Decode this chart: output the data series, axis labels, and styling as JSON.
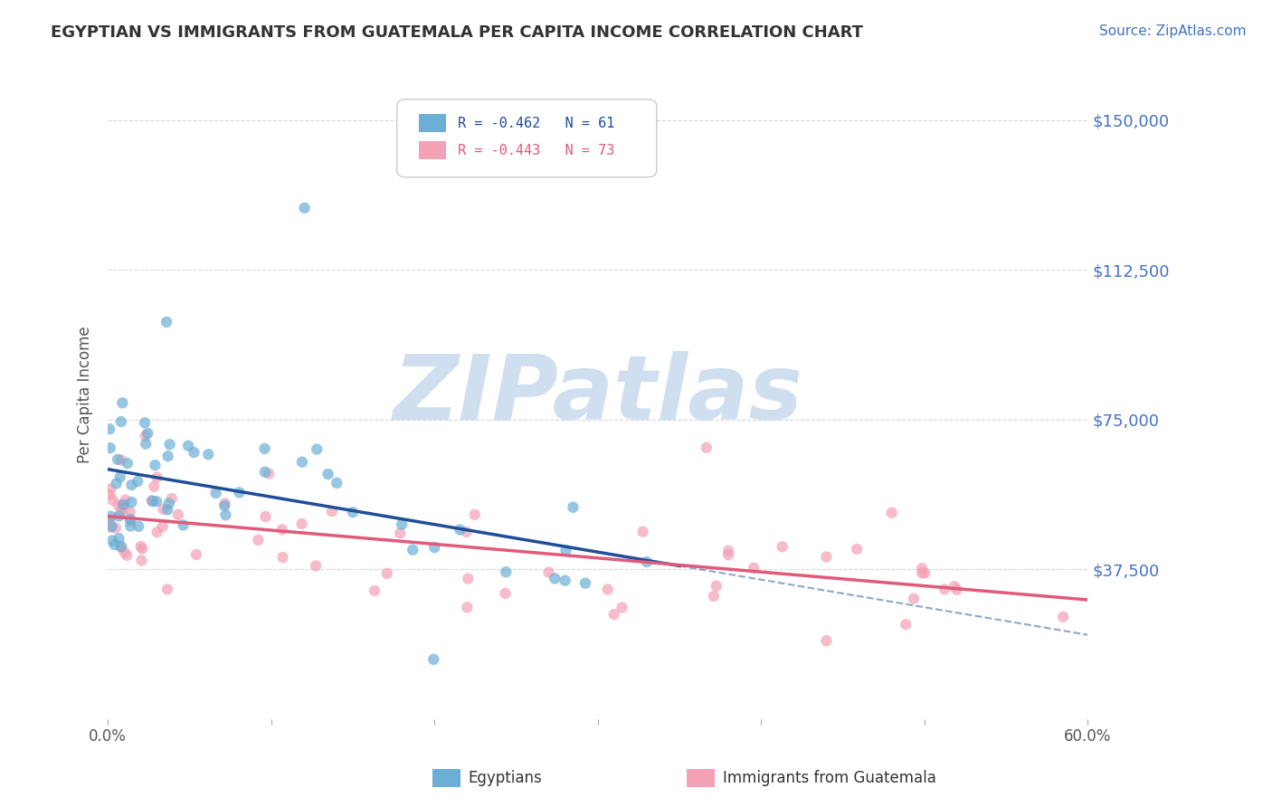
{
  "title": "EGYPTIAN VS IMMIGRANTS FROM GUATEMALA PER CAPITA INCOME CORRELATION CHART",
  "source_text": "Source: ZipAtlas.com",
  "ylabel": "Per Capita Income",
  "xlim": [
    0.0,
    0.6
  ],
  "ylim": [
    0,
    162500
  ],
  "yticks": [
    0,
    37500,
    75000,
    112500,
    150000
  ],
  "ytick_labels": [
    "",
    "$37,500",
    "$75,000",
    "$112,500",
    "$150,000"
  ],
  "xtick_vals": [
    0.0,
    0.1,
    0.2,
    0.3,
    0.4,
    0.5,
    0.6
  ],
  "xtick_labels": [
    "0.0%",
    "",
    "",
    "",
    "",
    "",
    "60.0%"
  ],
  "legend_items": [
    {
      "label": "R = -0.462   N = 61",
      "color": "#6baed6"
    },
    {
      "label": "R = -0.443   N = 73",
      "color": "#f4a0b5"
    }
  ],
  "legend_bottom": [
    {
      "label": "Egyptians",
      "color": "#6baed6"
    },
    {
      "label": "Immigrants from Guatemala",
      "color": "#f4a0b5"
    }
  ],
  "watermark": "ZIPatlas",
  "watermark_color": "#d0dff0",
  "background_color": "#ffffff",
  "grid_color": "#cccccc",
  "title_color": "#333333",
  "axis_label_color": "#555555",
  "ytick_color": "#4472c4",
  "xtick_color": "#555555",
  "source_color": "#4472c4",
  "blue_N": 61,
  "pink_N": 73,
  "blue_line_color": "#1f4e99",
  "pink_line_color": "#e05a7a",
  "blue_dot_color": "#6baed6",
  "pink_dot_color": "#f4a0b5",
  "dot_alpha": 0.7,
  "dot_size": 80
}
